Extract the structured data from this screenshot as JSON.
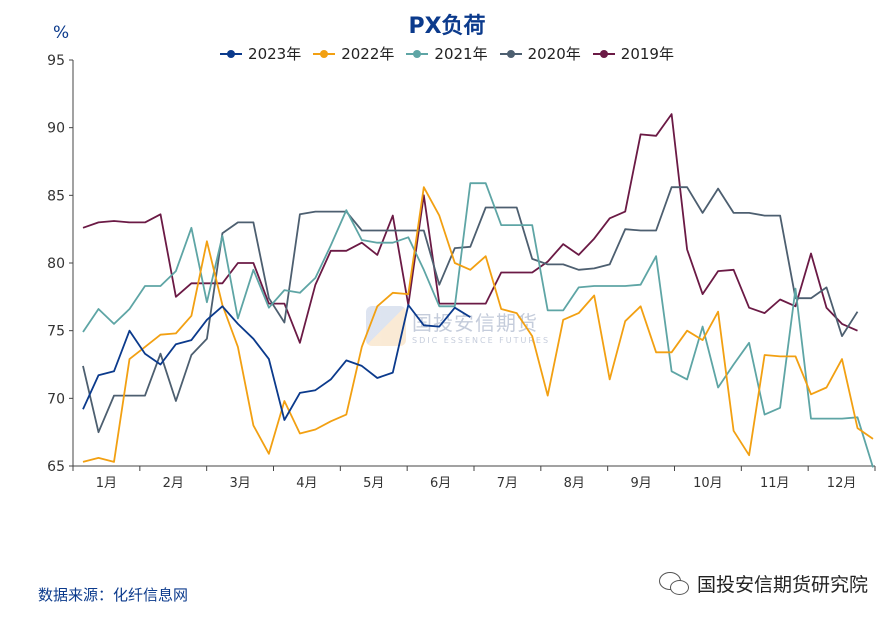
{
  "chart_data": {
    "type": "line",
    "title": "PX负荷",
    "ylabel": "%",
    "ylim": [
      65,
      95
    ],
    "yticks": [
      65,
      70,
      75,
      80,
      85,
      90,
      95
    ],
    "xlabels": [
      "1月",
      "2月",
      "3月",
      "4月",
      "5月",
      "6月",
      "7月",
      "8月",
      "9月",
      "10月",
      "11月",
      "12月"
    ],
    "weeks_per_year": 52,
    "series": [
      {
        "name": "2023年",
        "color": "#0b3a8c",
        "values": [
          69.2,
          71.7,
          72.0,
          75.0,
          73.3,
          72.5,
          74.0,
          74.3,
          75.8,
          76.8,
          75.5,
          74.4,
          72.9,
          68.4,
          70.4,
          70.6,
          71.4,
          72.8,
          72.4,
          71.5,
          71.9,
          76.9,
          75.4,
          75.3,
          76.7,
          76.0
        ]
      },
      {
        "name": "2022年",
        "color": "#f2a012",
        "values": [
          65.3,
          65.6,
          65.3,
          72.9,
          73.8,
          74.7,
          74.8,
          76.1,
          81.6,
          76.9,
          73.8,
          68.0,
          65.9,
          69.8,
          67.4,
          67.7,
          68.3,
          68.8,
          73.8,
          76.8,
          77.8,
          77.7,
          85.6,
          83.5,
          80.0,
          79.5,
          80.5,
          76.6,
          76.3,
          74.6,
          70.2,
          75.8,
          76.3,
          77.6,
          71.4,
          75.7,
          76.8,
          73.4,
          73.4,
          75.0,
          74.3,
          76.4,
          67.6,
          65.8,
          73.2,
          73.1,
          73.1,
          70.3,
          70.8,
          72.9,
          67.8,
          67.0
        ]
      },
      {
        "name": "2021年",
        "color": "#5ea5a5",
        "values": [
          74.9,
          76.6,
          75.5,
          76.6,
          78.3,
          78.3,
          79.4,
          82.6,
          77.1,
          82.0,
          75.9,
          79.5,
          76.7,
          78.0,
          77.8,
          78.9,
          81.3,
          83.9,
          81.7,
          81.5,
          81.5,
          81.9,
          79.5,
          76.8,
          76.8,
          85.9,
          85.9,
          82.8,
          82.8,
          82.8,
          76.5,
          76.5,
          78.2,
          78.3,
          78.3,
          78.3,
          78.4,
          80.5,
          72.0,
          71.4,
          75.3,
          70.8,
          72.5,
          74.1,
          68.8,
          69.3,
          78.1,
          68.5,
          68.5,
          68.5,
          68.6,
          64.9
        ]
      },
      {
        "name": "2020年",
        "color": "#4d5f70",
        "values": [
          72.4,
          67.5,
          70.2,
          70.2,
          70.2,
          73.3,
          69.8,
          73.2,
          74.4,
          82.2,
          83.0,
          83.0,
          77.4,
          75.6,
          83.6,
          83.8,
          83.8,
          83.8,
          82.4,
          82.4,
          82.4,
          82.4,
          82.4,
          78.4,
          81.1,
          81.2,
          84.1,
          84.1,
          84.1,
          80.3,
          79.9,
          79.9,
          79.5,
          79.6,
          79.9,
          82.5,
          82.4,
          82.4,
          85.6,
          85.6,
          83.7,
          85.5,
          83.7,
          83.7,
          83.5,
          83.5,
          77.4,
          77.4,
          78.2,
          74.6,
          76.4
        ]
      },
      {
        "name": "2019年",
        "color": "#6b1a45",
        "values": [
          82.6,
          83.0,
          83.1,
          83.0,
          83.0,
          83.6,
          77.5,
          78.5,
          78.5,
          78.5,
          80.0,
          80.0,
          77.0,
          77.0,
          74.1,
          78.4,
          80.9,
          80.9,
          81.5,
          80.6,
          83.5,
          76.9,
          85.0,
          77.0,
          77.0,
          77.0,
          77.0,
          79.3,
          79.3,
          79.3,
          80.1,
          81.4,
          80.6,
          81.8,
          83.3,
          83.8,
          89.5,
          89.4,
          91.0,
          81.0,
          77.7,
          79.4,
          79.5,
          76.7,
          76.3,
          77.3,
          76.8,
          80.7,
          76.7,
          75.5,
          75.0
        ]
      }
    ]
  },
  "unit_label": "%",
  "source_note": "数据来源：化纤信息网",
  "brand_text": "国投安信期货研究院",
  "watermark": {
    "cn": "国投安信期货",
    "en": "SDIC ESSENCE FUTURES"
  }
}
